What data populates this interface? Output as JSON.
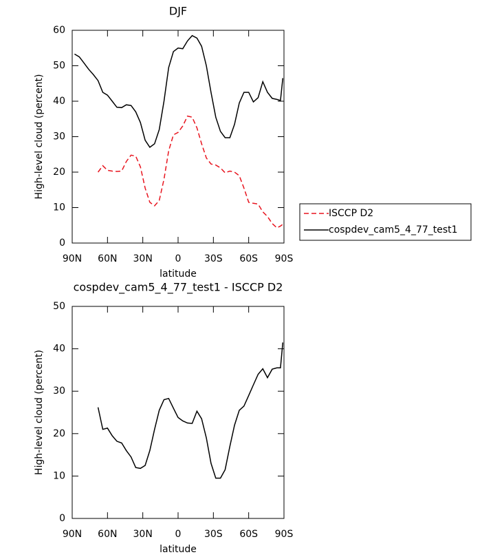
{
  "chart_data": [
    {
      "type": "line",
      "title": "DJF",
      "xlabel": "latitude",
      "ylabel": "High-level cloud (percent)",
      "x": [
        88,
        84,
        80,
        76,
        72,
        68,
        64,
        60,
        56,
        52,
        48,
        44,
        40,
        36,
        32,
        28,
        24,
        20,
        16,
        12,
        8,
        4,
        0,
        -4,
        -8,
        -12,
        -16,
        -20,
        -24,
        -28,
        -32,
        -36,
        -40,
        -44,
        -48,
        -52,
        -56,
        -60,
        -64,
        -68,
        -72,
        -76,
        -80,
        -84,
        -87,
        -89
      ],
      "series": [
        {
          "name": "ISCCP D2",
          "color": "#e8141e",
          "linestyle": "dashed",
          "values": [
            null,
            null,
            null,
            null,
            null,
            20,
            21.8,
            20.5,
            20.3,
            20.2,
            20.3,
            23,
            24.8,
            24.5,
            21.5,
            15.5,
            11.5,
            10.5,
            12,
            18,
            26,
            30.5,
            31.2,
            33,
            35.8,
            35.5,
            32.5,
            28,
            24,
            22.3,
            22,
            21.2,
            19.8,
            20.3,
            20,
            19,
            15.5,
            11.5,
            11.2,
            11,
            8.8,
            7.5,
            5.5,
            4.3,
            4.8,
            5.3
          ]
        },
        {
          "name": "cospdev_cam5_4_77_test1",
          "color": "#000000",
          "linestyle": "solid",
          "values": [
            53.3,
            52.5,
            50.8,
            49,
            47.5,
            45.8,
            42.5,
            41.7,
            40,
            38.3,
            38.2,
            39,
            38.8,
            37,
            34,
            29,
            27,
            28,
            32,
            40,
            49.5,
            54,
            55,
            54.8,
            57,
            58.5,
            57.8,
            55.5,
            50,
            42.5,
            35.5,
            31.5,
            29.7,
            29.7,
            33.5,
            39.5,
            42.5,
            42.5,
            39.8,
            41,
            45.5,
            42.5,
            40.8,
            40.5,
            40.2,
            46.5
          ]
        }
      ],
      "xlim": [
        90,
        -90
      ],
      "xticks": [
        {
          "value": 90,
          "label": "90N"
        },
        {
          "value": 60,
          "label": "60N"
        },
        {
          "value": 30,
          "label": "30N"
        },
        0,
        {
          "value": -30,
          "label": "30S"
        },
        {
          "value": -60,
          "label": "60S"
        },
        {
          "value": -90,
          "label": "90S"
        }
      ],
      "ylim": [
        0,
        60
      ],
      "yticks": [
        0,
        10,
        20,
        30,
        40,
        50,
        60
      ],
      "legend": "right"
    },
    {
      "type": "line",
      "title": "cospdev_cam5_4_77_test1 - ISCCP D2",
      "xlabel": "latitude",
      "ylabel": "High-level cloud (percent)",
      "x": [
        88,
        84,
        80,
        76,
        72,
        68,
        64,
        60,
        56,
        52,
        48,
        44,
        40,
        36,
        32,
        28,
        24,
        20,
        16,
        12,
        8,
        4,
        0,
        -4,
        -8,
        -12,
        -16,
        -20,
        -24,
        -28,
        -32,
        -36,
        -40,
        -44,
        -48,
        -52,
        -56,
        -60,
        -64,
        -68,
        -72,
        -76,
        -80,
        -84,
        -87,
        -89
      ],
      "series": [
        {
          "color": "#000000",
          "linestyle": "solid",
          "values": [
            null,
            null,
            null,
            null,
            null,
            26.2,
            21,
            21.3,
            19.5,
            18.2,
            17.8,
            16,
            14.5,
            12,
            11.8,
            12.5,
            16,
            21,
            25.5,
            28,
            28.3,
            26,
            23.8,
            23,
            22.5,
            22.4,
            25.3,
            23.5,
            19,
            13,
            9.5,
            9.5,
            11.5,
            17,
            22,
            25.5,
            26.5,
            29,
            31.5,
            34,
            35.3,
            33.2,
            35.2,
            35.5,
            35.5,
            41.5
          ]
        }
      ],
      "xlim": [
        90,
        -90
      ],
      "xticks": [
        {
          "value": 90,
          "label": "90N"
        },
        {
          "value": 60,
          "label": "60N"
        },
        {
          "value": 30,
          "label": "30N"
        },
        0,
        {
          "value": -30,
          "label": "30S"
        },
        {
          "value": -60,
          "label": "60S"
        },
        {
          "value": -90,
          "label": "90S"
        }
      ],
      "ylim": [
        0,
        50
      ],
      "yticks": [
        0,
        10,
        20,
        30,
        40,
        50
      ]
    }
  ]
}
